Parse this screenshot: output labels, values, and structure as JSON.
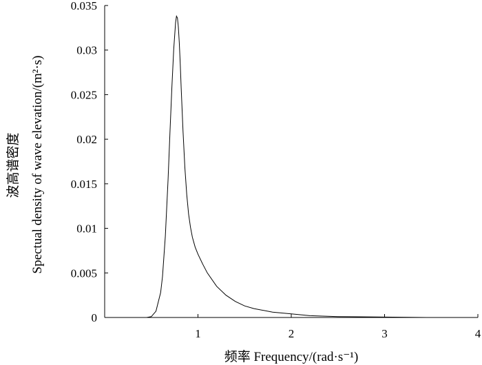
{
  "chart_data": {
    "type": "line",
    "title": "",
    "xlabel": "频率 Frequency/(rad·s⁻¹)",
    "ylabel_cn": "波高谱密度",
    "ylabel_en": "Spectual density of wave elevation/(m²·s)",
    "xlim": [
      0,
      4
    ],
    "ylim": [
      0,
      0.035
    ],
    "xticks": [
      1,
      2,
      3,
      4
    ],
    "xtick_labels": [
      "1",
      "2",
      "3",
      "4"
    ],
    "yticks": [
      0,
      0.005,
      0.01,
      0.015,
      0.02,
      0.025,
      0.03,
      0.035
    ],
    "ytick_labels": [
      "0",
      "0.005",
      "0.01",
      "0.015",
      "0.02",
      "0.025",
      "0.03",
      "0.035"
    ],
    "grid": false,
    "series": [
      {
        "x": [
          0.45,
          0.5,
          0.55,
          0.6,
          0.62,
          0.65,
          0.68,
          0.7,
          0.72,
          0.74,
          0.76,
          0.77,
          0.78,
          0.79,
          0.8,
          0.81,
          0.82,
          0.84,
          0.86,
          0.88,
          0.9,
          0.92,
          0.94,
          0.97,
          1.0,
          1.05,
          1.1,
          1.2,
          1.3,
          1.4,
          1.5,
          1.6,
          1.8,
          2.0,
          2.2,
          2.5,
          3.0,
          3.45
        ],
        "y": [
          0,
          0.0001,
          0.0007,
          0.0028,
          0.0046,
          0.0091,
          0.0155,
          0.0207,
          0.0258,
          0.0301,
          0.0331,
          0.0338,
          0.0336,
          0.0326,
          0.0308,
          0.0284,
          0.0258,
          0.0209,
          0.0168,
          0.0138,
          0.0116,
          0.0101,
          0.009,
          0.0079,
          0.0071,
          0.006,
          0.005,
          0.0035,
          0.0025,
          0.0018,
          0.0013,
          0.001,
          0.0006,
          0.0004,
          0.0002,
          0.0001,
          5e-05,
          0
        ]
      }
    ]
  }
}
